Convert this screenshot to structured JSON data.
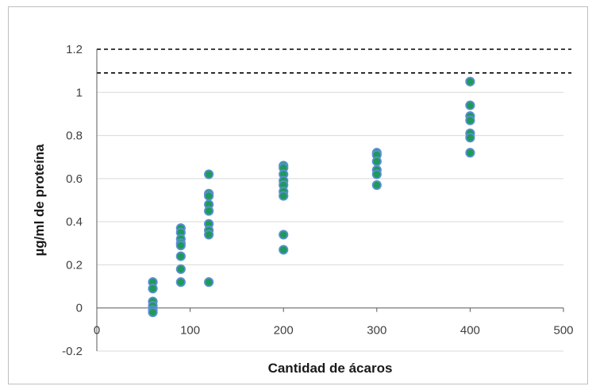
{
  "chart_data": {
    "type": "scatter",
    "title": "",
    "xlabel": "Cantidad de ácaros",
    "ylabel": "µg/ml de proteína",
    "xlim": [
      0,
      500
    ],
    "ylim": [
      -0.2,
      1.2
    ],
    "xticks": [
      0,
      100,
      200,
      300,
      400,
      500
    ],
    "yticks": [
      -0.2,
      0,
      0.2,
      0.4,
      0.6,
      0.8,
      1,
      1.2
    ],
    "ytick_labels": [
      "-0.2",
      "0",
      "0.2",
      "0.4",
      "0.6",
      "0.8",
      "1",
      "1.2"
    ],
    "xtick_labels": [
      "0",
      "100",
      "200",
      "300",
      "400",
      "500"
    ],
    "grid": "horizontal",
    "reference_lines": [
      1.2,
      1.09
    ],
    "marker_fill": "#1e9a5a",
    "marker_edge": "#5b8fd1",
    "points": [
      [
        60,
        0.12
      ],
      [
        60,
        0.09
      ],
      [
        60,
        0.03
      ],
      [
        60,
        0.01
      ],
      [
        60,
        -0.01
      ],
      [
        60,
        -0.02
      ],
      [
        90,
        0.37
      ],
      [
        90,
        0.35
      ],
      [
        90,
        0.32
      ],
      [
        90,
        0.3
      ],
      [
        90,
        0.29
      ],
      [
        90,
        0.24
      ],
      [
        90,
        0.18
      ],
      [
        90,
        0.12
      ],
      [
        120,
        0.62
      ],
      [
        120,
        0.53
      ],
      [
        120,
        0.52
      ],
      [
        120,
        0.48
      ],
      [
        120,
        0.45
      ],
      [
        120,
        0.39
      ],
      [
        120,
        0.36
      ],
      [
        120,
        0.34
      ],
      [
        120,
        0.12
      ],
      [
        200,
        0.66
      ],
      [
        200,
        0.65
      ],
      [
        200,
        0.62
      ],
      [
        200,
        0.59
      ],
      [
        200,
        0.57
      ],
      [
        200,
        0.54
      ],
      [
        200,
        0.52
      ],
      [
        200,
        0.34
      ],
      [
        200,
        0.27
      ],
      [
        300,
        0.72
      ],
      [
        300,
        0.71
      ],
      [
        300,
        0.68
      ],
      [
        300,
        0.64
      ],
      [
        300,
        0.62
      ],
      [
        300,
        0.57
      ],
      [
        400,
        1.05
      ],
      [
        400,
        0.94
      ],
      [
        400,
        0.89
      ],
      [
        400,
        0.87
      ],
      [
        400,
        0.81
      ],
      [
        400,
        0.79
      ],
      [
        400,
        0.72
      ]
    ]
  }
}
